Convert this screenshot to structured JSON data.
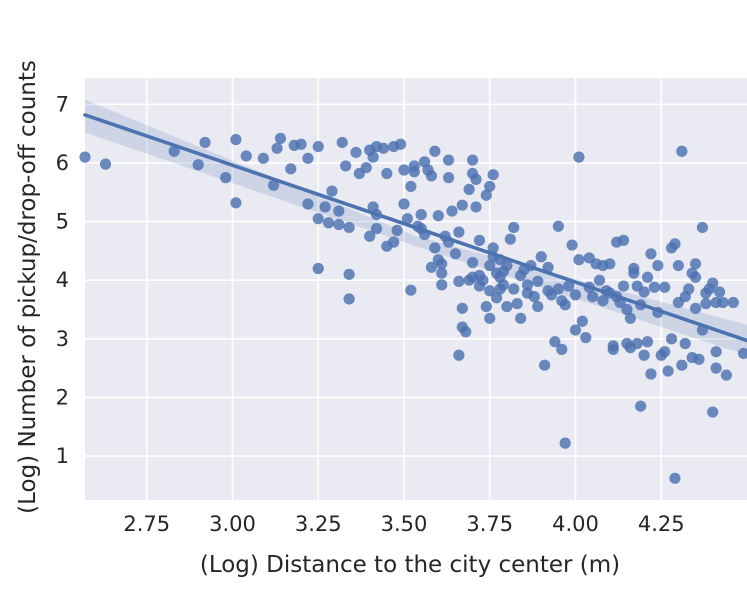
{
  "chart_data": {
    "type": "scatter",
    "title": "",
    "xlabel": "(Log) Distance to the city center (m)",
    "ylabel": "(Log) Number of pickup/drop-off counts",
    "xlim": [
      2.57,
      4.5
    ],
    "ylim": [
      0.25,
      7.45
    ],
    "xticks": [
      "2.75",
      "3.00",
      "3.25",
      "3.50",
      "3.75",
      "4.00",
      "4.25"
    ],
    "yticks": [
      "1",
      "2",
      "3",
      "4",
      "5",
      "6",
      "7"
    ],
    "xtick_values": [
      2.75,
      3.0,
      3.25,
      3.5,
      3.75,
      4.0,
      4.25
    ],
    "ytick_values": [
      1,
      2,
      3,
      4,
      5,
      6,
      7
    ],
    "grid": true,
    "background_color": "#eaeaf2",
    "point_color": "#4c72b0",
    "regression": {
      "x_start": 2.57,
      "y_start": 6.82,
      "x_end": 4.5,
      "y_end": 2.97,
      "ci_band_start": [
        6.52,
        7.08
      ],
      "ci_band_mid": [
        4.58,
        4.75
      ],
      "ci_band_end": [
        2.72,
        3.24
      ]
    },
    "points": [
      [
        2.57,
        6.1
      ],
      [
        2.63,
        5.98
      ],
      [
        2.83,
        6.2
      ],
      [
        2.92,
        6.35
      ],
      [
        2.9,
        5.97
      ],
      [
        2.98,
        5.75
      ],
      [
        3.01,
        6.4
      ],
      [
        3.01,
        5.32
      ],
      [
        3.04,
        6.12
      ],
      [
        3.09,
        6.08
      ],
      [
        3.12,
        5.62
      ],
      [
        3.13,
        6.25
      ],
      [
        3.14,
        6.42
      ],
      [
        3.18,
        6.3
      ],
      [
        3.17,
        5.9
      ],
      [
        3.2,
        6.32
      ],
      [
        3.22,
        6.08
      ],
      [
        3.22,
        5.3
      ],
      [
        3.25,
        6.28
      ],
      [
        3.25,
        5.05
      ],
      [
        3.25,
        4.2
      ],
      [
        3.27,
        5.25
      ],
      [
        3.28,
        4.98
      ],
      [
        3.29,
        5.52
      ],
      [
        3.31,
        5.18
      ],
      [
        3.31,
        4.95
      ],
      [
        3.32,
        6.35
      ],
      [
        3.33,
        5.95
      ],
      [
        3.34,
        4.9
      ],
      [
        3.34,
        4.1
      ],
      [
        3.34,
        3.68
      ],
      [
        3.36,
        6.18
      ],
      [
        3.37,
        5.82
      ],
      [
        3.39,
        5.92
      ],
      [
        3.4,
        6.22
      ],
      [
        3.4,
        4.75
      ],
      [
        3.41,
        5.25
      ],
      [
        3.41,
        6.1
      ],
      [
        3.42,
        6.28
      ],
      [
        3.42,
        5.12
      ],
      [
        3.42,
        4.88
      ],
      [
        3.44,
        6.25
      ],
      [
        3.45,
        5.82
      ],
      [
        3.45,
        4.58
      ],
      [
        3.47,
        6.28
      ],
      [
        3.47,
        4.65
      ],
      [
        3.48,
        4.85
      ],
      [
        3.49,
        6.32
      ],
      [
        3.5,
        5.88
      ],
      [
        3.5,
        5.3
      ],
      [
        3.51,
        5.05
      ],
      [
        3.52,
        5.6
      ],
      [
        3.52,
        3.83
      ],
      [
        3.53,
        5.85
      ],
      [
        3.53,
        5.95
      ],
      [
        3.54,
        4.92
      ],
      [
        3.55,
        5.12
      ],
      [
        3.55,
        4.88
      ],
      [
        3.56,
        6.02
      ],
      [
        3.56,
        4.78
      ],
      [
        3.57,
        5.88
      ],
      [
        3.58,
        4.22
      ],
      [
        3.58,
        5.78
      ],
      [
        3.59,
        6.2
      ],
      [
        3.59,
        4.55
      ],
      [
        3.6,
        5.1
      ],
      [
        3.6,
        4.35
      ],
      [
        3.61,
        4.28
      ],
      [
        3.61,
        4.12
      ],
      [
        3.61,
        3.92
      ],
      [
        3.62,
        4.75
      ],
      [
        3.63,
        5.75
      ],
      [
        3.63,
        6.05
      ],
      [
        3.63,
        4.65
      ],
      [
        3.64,
        5.18
      ],
      [
        3.65,
        4.45
      ],
      [
        3.66,
        4.82
      ],
      [
        3.66,
        3.98
      ],
      [
        3.66,
        2.72
      ],
      [
        3.67,
        5.28
      ],
      [
        3.67,
        3.52
      ],
      [
        3.67,
        3.2
      ],
      [
        3.68,
        3.12
      ],
      [
        3.69,
        5.55
      ],
      [
        3.69,
        4.0
      ],
      [
        3.7,
        6.05
      ],
      [
        3.7,
        5.82
      ],
      [
        3.7,
        4.3
      ],
      [
        3.7,
        4.05
      ],
      [
        3.71,
        5.72
      ],
      [
        3.71,
        5.25
      ],
      [
        3.72,
        4.68
      ],
      [
        3.72,
        4.08
      ],
      [
        3.72,
        3.9
      ],
      [
        3.73,
        4.0
      ],
      [
        3.74,
        5.45
      ],
      [
        3.74,
        3.55
      ],
      [
        3.75,
        3.35
      ],
      [
        3.75,
        5.6
      ],
      [
        3.75,
        4.25
      ],
      [
        3.75,
        3.82
      ],
      [
        3.76,
        5.8
      ],
      [
        3.76,
        4.55
      ],
      [
        3.76,
        4.4
      ],
      [
        3.77,
        4.12
      ],
      [
        3.77,
        3.7
      ],
      [
        3.78,
        4.35
      ],
      [
        3.78,
        4.05
      ],
      [
        3.78,
        3.85
      ],
      [
        3.79,
        4.15
      ],
      [
        3.79,
        3.92
      ],
      [
        3.8,
        4.25
      ],
      [
        3.8,
        3.55
      ],
      [
        3.81,
        4.7
      ],
      [
        3.82,
        4.9
      ],
      [
        3.82,
        3.85
      ],
      [
        3.83,
        3.6
      ],
      [
        3.84,
        4.08
      ],
      [
        3.84,
        3.35
      ],
      [
        3.85,
        4.18
      ],
      [
        3.86,
        3.78
      ],
      [
        3.86,
        3.92
      ],
      [
        3.87,
        4.25
      ],
      [
        3.88,
        3.72
      ],
      [
        3.89,
        3.98
      ],
      [
        3.89,
        3.55
      ],
      [
        3.9,
        4.4
      ],
      [
        3.91,
        2.55
      ],
      [
        3.92,
        4.22
      ],
      [
        3.92,
        3.82
      ],
      [
        3.93,
        3.75
      ],
      [
        3.94,
        2.95
      ],
      [
        3.95,
        4.92
      ],
      [
        3.95,
        3.85
      ],
      [
        3.96,
        3.65
      ],
      [
        3.96,
        2.82
      ],
      [
        3.97,
        3.58
      ],
      [
        3.97,
        1.22
      ],
      [
        3.98,
        3.9
      ],
      [
        3.99,
        4.6
      ],
      [
        4.0,
        3.75
      ],
      [
        4.0,
        3.15
      ],
      [
        4.01,
        6.1
      ],
      [
        4.01,
        4.35
      ],
      [
        4.02,
        3.3
      ],
      [
        4.03,
        3.02
      ],
      [
        4.04,
        4.38
      ],
      [
        4.04,
        3.88
      ],
      [
        4.05,
        3.72
      ],
      [
        4.06,
        4.28
      ],
      [
        4.07,
        4.0
      ],
      [
        4.08,
        3.65
      ],
      [
        4.08,
        4.25
      ],
      [
        4.09,
        3.82
      ],
      [
        4.1,
        4.28
      ],
      [
        4.1,
        3.78
      ],
      [
        4.11,
        2.88
      ],
      [
        4.11,
        2.82
      ],
      [
        4.12,
        4.65
      ],
      [
        4.12,
        3.72
      ],
      [
        4.13,
        3.62
      ],
      [
        4.14,
        4.68
      ],
      [
        4.14,
        3.9
      ],
      [
        4.15,
        3.5
      ],
      [
        4.15,
        2.92
      ],
      [
        4.16,
        3.35
      ],
      [
        4.16,
        2.85
      ],
      [
        4.17,
        4.2
      ],
      [
        4.17,
        4.12
      ],
      [
        4.18,
        3.9
      ],
      [
        4.18,
        2.92
      ],
      [
        4.19,
        3.58
      ],
      [
        4.19,
        1.85
      ],
      [
        4.2,
        3.8
      ],
      [
        4.2,
        2.72
      ],
      [
        4.21,
        4.05
      ],
      [
        4.21,
        2.95
      ],
      [
        4.22,
        4.45
      ],
      [
        4.22,
        2.4
      ],
      [
        4.23,
        3.88
      ],
      [
        4.24,
        4.25
      ],
      [
        4.24,
        3.45
      ],
      [
        4.25,
        2.72
      ],
      [
        4.26,
        3.88
      ],
      [
        4.26,
        2.78
      ],
      [
        4.27,
        2.45
      ],
      [
        4.28,
        4.55
      ],
      [
        4.28,
        3.0
      ],
      [
        4.29,
        4.62
      ],
      [
        4.29,
        0.62
      ],
      [
        4.3,
        4.25
      ],
      [
        4.3,
        3.62
      ],
      [
        4.31,
        6.2
      ],
      [
        4.31,
        2.55
      ],
      [
        4.32,
        3.72
      ],
      [
        4.32,
        2.92
      ],
      [
        4.33,
        3.85
      ],
      [
        4.34,
        4.12
      ],
      [
        4.34,
        2.68
      ],
      [
        4.35,
        4.28
      ],
      [
        4.35,
        4.05
      ],
      [
        4.35,
        3.52
      ],
      [
        4.36,
        2.65
      ],
      [
        4.37,
        4.9
      ],
      [
        4.37,
        3.15
      ],
      [
        4.38,
        3.78
      ],
      [
        4.38,
        3.6
      ],
      [
        4.39,
        3.85
      ],
      [
        4.4,
        3.95
      ],
      [
        4.4,
        1.75
      ],
      [
        4.41,
        3.62
      ],
      [
        4.41,
        2.78
      ],
      [
        4.41,
        2.5
      ],
      [
        4.42,
        3.8
      ],
      [
        4.43,
        3.62
      ],
      [
        4.44,
        2.38
      ],
      [
        4.46,
        3.62
      ],
      [
        4.49,
        2.75
      ]
    ]
  }
}
